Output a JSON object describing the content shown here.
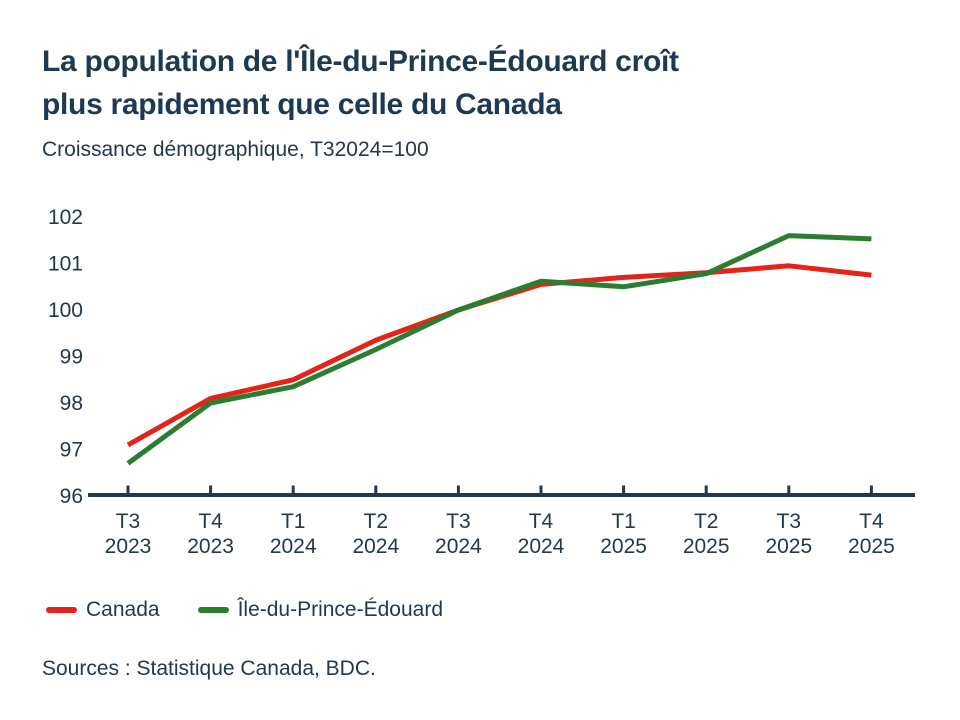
{
  "header": {
    "title_line1": "La population de l'Île-du-Prince-Édouard croît",
    "title_line2": "plus rapidement que celle du Canada",
    "subtitle": "Croissance démographique, T32024=100"
  },
  "chart_data": {
    "type": "line",
    "title": "La population de l'Île-du-Prince-Édouard croît plus rapidement que celle du Canada",
    "subtitle": "Croissance démographique, T32024=100",
    "categories": [
      "T3 2023",
      "T4 2023",
      "T1 2024",
      "T2 2024",
      "T3 2024",
      "T4 2024",
      "T1 2025",
      "T2 2025",
      "T3 2025",
      "T4 2025"
    ],
    "series": [
      {
        "name": "Canada",
        "color": "#e42418",
        "values": [
          97.1,
          98.1,
          98.5,
          99.35,
          100,
          100.55,
          100.7,
          100.8,
          100.95,
          100.75
        ]
      },
      {
        "name": "Île-du-Prince-Édouard",
        "color": "#2b7e31",
        "values": [
          96.7,
          98,
          98.35,
          99.15,
          100,
          100.62,
          100.5,
          100.78,
          101.6,
          101.53
        ]
      }
    ],
    "ylim": [
      96,
      102
    ],
    "yticks": [
      96,
      97,
      98,
      99,
      100,
      101,
      102
    ],
    "grid": false,
    "legend_position": "bottom-left",
    "axis_color": "#23384a"
  },
  "legend": {
    "items": [
      {
        "label": "Canada",
        "color": "#e42418"
      },
      {
        "label": "Île-du-Prince-Édouard",
        "color": "#2b7e31"
      }
    ]
  },
  "footer": {
    "sources": "Sources : Statistique Canada, BDC."
  }
}
